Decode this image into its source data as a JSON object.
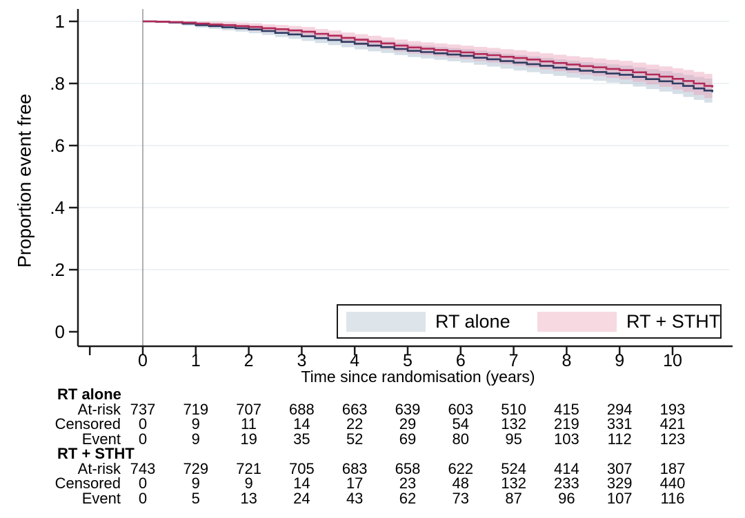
{
  "figure": {
    "background": "#ffffff",
    "x_axis_title": "Time since randomisation (years)",
    "y_axis_title": "Proportion event free"
  },
  "legend": {
    "items": [
      {
        "label": "RT alone",
        "swatch_color": "#dde4ea"
      },
      {
        "label": "RT + STHT",
        "swatch_color": "#f6d9e1"
      }
    ]
  },
  "chart_data": {
    "type": "line",
    "subtype": "kaplan-meier-step",
    "title": "",
    "xlabel": "Time since randomisation (years)",
    "ylabel": "Proportion event free",
    "xlim": [
      -1.25,
      11.1
    ],
    "ylim": [
      0,
      1
    ],
    "x_ticks": [
      0,
      1,
      2,
      3,
      4,
      5,
      6,
      7,
      8,
      9,
      10
    ],
    "extra_unlabeled_x_tick": -1,
    "y_ticks": [
      {
        "v": 1.0,
        "label": "1"
      },
      {
        "v": 0.8,
        "label": ".8"
      },
      {
        "v": 0.6,
        "label": ".6"
      },
      {
        "v": 0.4,
        "label": ".4"
      },
      {
        "v": 0.2,
        "label": ".2"
      },
      {
        "v": 0.0,
        "label": "0"
      }
    ],
    "grid": true,
    "grid_color": "#e9eef0",
    "axis_color": "#1a1a1a",
    "time_zero_line_color": "#8f8f8f",
    "legend_position": "inside-bottom-right",
    "series": [
      {
        "name": "RT alone",
        "line_color": "#2e3c62",
        "band_color": "rgba(164,185,201,0.45)",
        "points": [
          [
            0,
            1
          ],
          [
            0.25,
            0.999
          ],
          [
            0.5,
            0.997
          ],
          [
            0.75,
            0.993
          ],
          [
            1,
            0.988
          ],
          [
            1.25,
            0.985
          ],
          [
            1.5,
            0.981
          ],
          [
            1.75,
            0.978
          ],
          [
            2,
            0.974
          ],
          [
            2.25,
            0.969
          ],
          [
            2.5,
            0.963
          ],
          [
            2.75,
            0.958
          ],
          [
            3,
            0.952
          ],
          [
            3.25,
            0.946
          ],
          [
            3.5,
            0.94
          ],
          [
            3.75,
            0.934
          ],
          [
            4,
            0.928
          ],
          [
            4.25,
            0.922
          ],
          [
            4.5,
            0.917
          ],
          [
            4.75,
            0.911
          ],
          [
            5,
            0.905
          ],
          [
            5.25,
            0.901
          ],
          [
            5.5,
            0.897
          ],
          [
            5.75,
            0.893
          ],
          [
            6,
            0.889
          ],
          [
            6.25,
            0.883
          ],
          [
            6.5,
            0.878
          ],
          [
            6.75,
            0.872
          ],
          [
            7,
            0.867
          ],
          [
            7.25,
            0.862
          ],
          [
            7.5,
            0.857
          ],
          [
            7.75,
            0.851
          ],
          [
            8,
            0.846
          ],
          [
            8.25,
            0.841
          ],
          [
            8.5,
            0.837
          ],
          [
            8.75,
            0.832
          ],
          [
            9,
            0.828
          ],
          [
            9.25,
            0.821
          ],
          [
            9.5,
            0.814
          ],
          [
            9.75,
            0.807
          ],
          [
            10,
            0.8
          ],
          [
            10.2,
            0.792
          ],
          [
            10.4,
            0.784
          ],
          [
            10.6,
            0.777
          ],
          [
            10.75,
            0.772
          ]
        ]
      },
      {
        "name": "RT + STHT",
        "line_color": "#b22a58",
        "band_color": "rgba(233,160,184,0.45)",
        "points": [
          [
            0,
            1
          ],
          [
            0.25,
            0.999
          ],
          [
            0.5,
            0.998
          ],
          [
            0.75,
            0.996
          ],
          [
            1,
            0.993
          ],
          [
            1.25,
            0.99
          ],
          [
            1.5,
            0.988
          ],
          [
            1.75,
            0.985
          ],
          [
            2,
            0.982
          ],
          [
            2.25,
            0.978
          ],
          [
            2.5,
            0.975
          ],
          [
            2.75,
            0.971
          ],
          [
            3,
            0.967
          ],
          [
            3.25,
            0.96
          ],
          [
            3.5,
            0.954
          ],
          [
            3.75,
            0.947
          ],
          [
            4,
            0.941
          ],
          [
            4.25,
            0.935
          ],
          [
            4.5,
            0.929
          ],
          [
            4.75,
            0.922
          ],
          [
            5,
            0.916
          ],
          [
            5.25,
            0.912
          ],
          [
            5.5,
            0.908
          ],
          [
            5.75,
            0.904
          ],
          [
            6,
            0.9
          ],
          [
            6.25,
            0.895
          ],
          [
            6.5,
            0.891
          ],
          [
            6.75,
            0.886
          ],
          [
            7,
            0.882
          ],
          [
            7.25,
            0.877
          ],
          [
            7.5,
            0.871
          ],
          [
            7.75,
            0.866
          ],
          [
            8,
            0.861
          ],
          [
            8.25,
            0.856
          ],
          [
            8.5,
            0.852
          ],
          [
            8.75,
            0.847
          ],
          [
            9,
            0.843
          ],
          [
            9.25,
            0.836
          ],
          [
            9.5,
            0.829
          ],
          [
            9.75,
            0.822
          ],
          [
            10,
            0.815
          ],
          [
            10.2,
            0.808
          ],
          [
            10.4,
            0.8
          ],
          [
            10.6,
            0.792
          ],
          [
            10.75,
            0.787
          ]
        ]
      }
    ],
    "band_halfwidth": [
      [
        0,
        0.003
      ],
      [
        1,
        0.008
      ],
      [
        2,
        0.012
      ],
      [
        3,
        0.015
      ],
      [
        4,
        0.018
      ],
      [
        5,
        0.02
      ],
      [
        6,
        0.022
      ],
      [
        7,
        0.025
      ],
      [
        8,
        0.027
      ],
      [
        9,
        0.03
      ],
      [
        10,
        0.034
      ],
      [
        10.75,
        0.04
      ]
    ]
  },
  "risk_table": {
    "time_columns": [
      0,
      1,
      2,
      3,
      4,
      5,
      6,
      7,
      8,
      9,
      10
    ],
    "groups": [
      {
        "name": "RT alone",
        "rows": [
          {
            "label": "At-risk",
            "values": [
              737,
              719,
              707,
              688,
              663,
              639,
              603,
              510,
              415,
              294,
              193
            ]
          },
          {
            "label": "Censored",
            "values": [
              0,
              9,
              11,
              14,
              22,
              29,
              54,
              132,
              219,
              331,
              421
            ]
          },
          {
            "label": "Event",
            "values": [
              0,
              9,
              19,
              35,
              52,
              69,
              80,
              95,
              103,
              112,
              123
            ]
          }
        ]
      },
      {
        "name": "RT + STHT",
        "rows": [
          {
            "label": "At-risk",
            "values": [
              743,
              729,
              721,
              705,
              683,
              658,
              622,
              524,
              414,
              307,
              187
            ]
          },
          {
            "label": "Censored",
            "values": [
              0,
              9,
              9,
              14,
              17,
              23,
              48,
              132,
              233,
              329,
              440
            ]
          },
          {
            "label": "Event",
            "values": [
              0,
              5,
              13,
              24,
              43,
              62,
              73,
              87,
              96,
              107,
              116
            ]
          }
        ]
      }
    ]
  }
}
